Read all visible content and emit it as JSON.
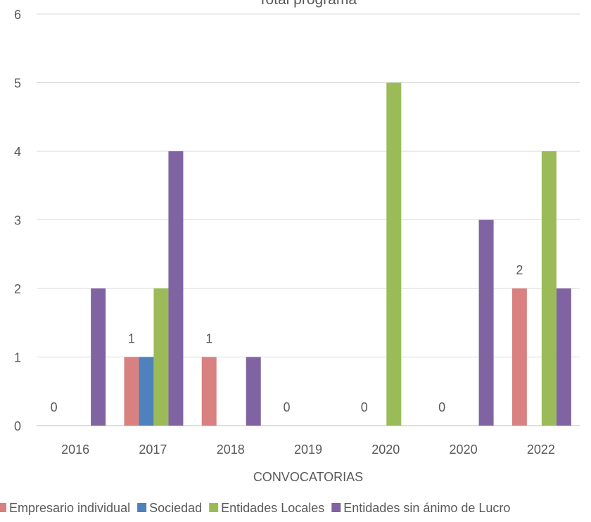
{
  "chart_data": {
    "type": "bar",
    "title": "Total programa",
    "xlabel": "CONVOCATORIAS",
    "ylabel": "",
    "ylim": [
      0,
      6
    ],
    "yticks": [
      0,
      1,
      2,
      3,
      4,
      5,
      6
    ],
    "grid": true,
    "legend_position": "bottom",
    "categories": [
      "2016",
      "2017",
      "2018",
      "2019",
      "2020",
      "2020",
      "2022"
    ],
    "series": [
      {
        "name": "Empresario individual",
        "color": "#d98080",
        "values": [
          0,
          1,
          1,
          0,
          0,
          0,
          2
        ]
      },
      {
        "name": "Sociedad",
        "color": "#4f81bd",
        "values": [
          0,
          1,
          0,
          0,
          0,
          0,
          0
        ]
      },
      {
        "name": "Entidades Locales",
        "color": "#9bbb59",
        "values": [
          0,
          2,
          0,
          0,
          5,
          0,
          4
        ]
      },
      {
        "name": "Entidades sin ánimo de Lucro",
        "color": "#8064a2",
        "values": [
          2,
          4,
          1,
          0,
          0,
          3,
          2
        ]
      }
    ],
    "data_labels": [
      {
        "category_index": 0,
        "text": "0"
      },
      {
        "category_index": 1,
        "text": "1"
      },
      {
        "category_index": 2,
        "text": "1"
      },
      {
        "category_index": 3,
        "text": "0"
      },
      {
        "category_index": 4,
        "text": "0"
      },
      {
        "category_index": 5,
        "text": "0"
      },
      {
        "category_index": 6,
        "text": "2"
      }
    ]
  }
}
